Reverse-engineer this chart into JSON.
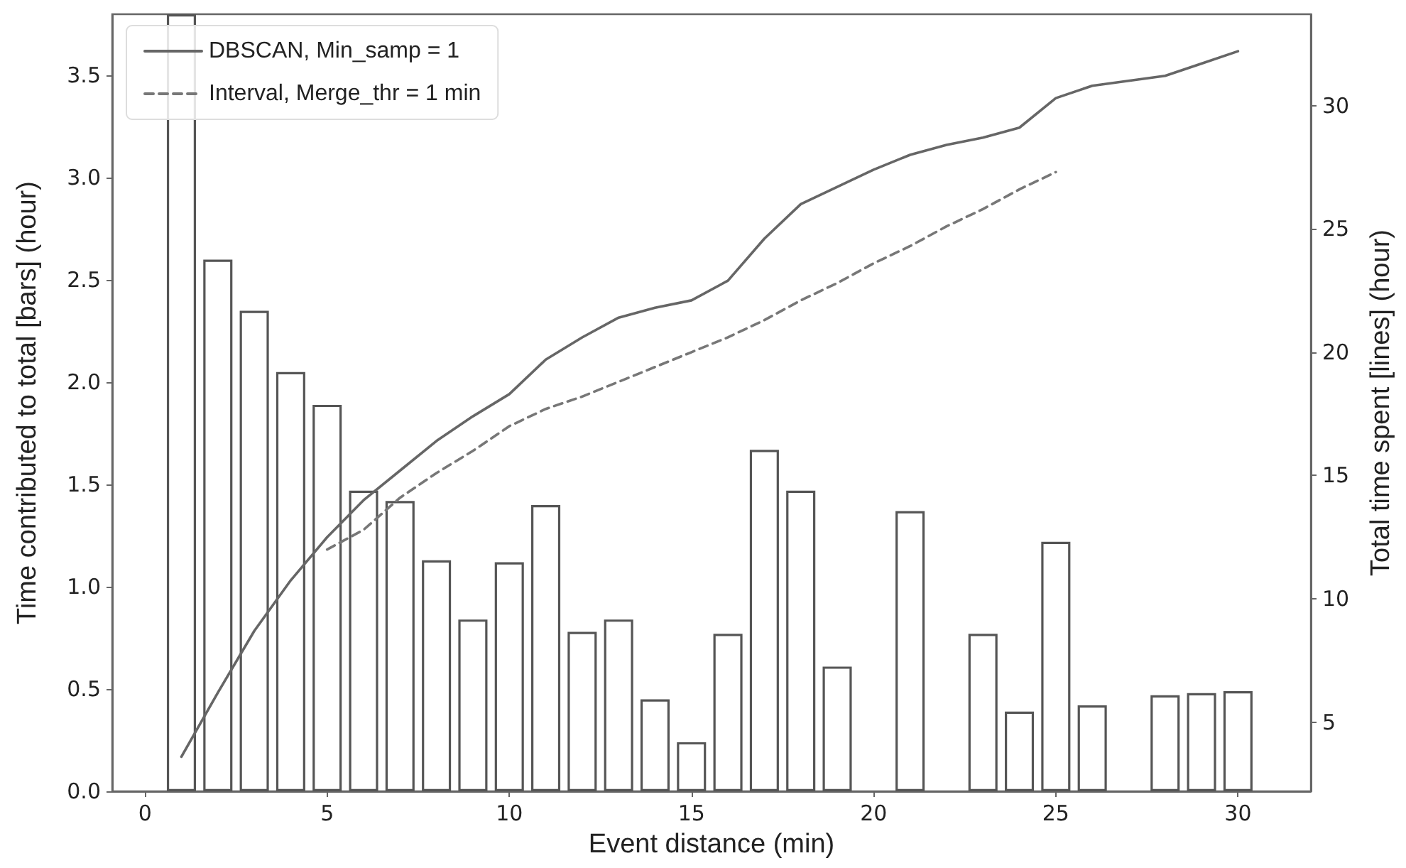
{
  "chart_data": {
    "type": "bar",
    "xlabel": "Event distance (min)",
    "ylabel": "Time contributed to total [bars] (hour)",
    "y2label": "Total time spent [lines] (hour)",
    "x": [
      1,
      2,
      3,
      4,
      5,
      6,
      7,
      8,
      9,
      10,
      11,
      12,
      13,
      14,
      15,
      16,
      17,
      18,
      19,
      20,
      21,
      22,
      23,
      24,
      25,
      26,
      27,
      28,
      29,
      30
    ],
    "xlim": [
      -0.9,
      32
    ],
    "xticks": [
      0,
      5,
      10,
      15,
      20,
      25,
      30
    ],
    "ylim": [
      0,
      3.8
    ],
    "yticks": [
      {
        "value": 0,
        "label": "0.0"
      },
      {
        "value": 0.5,
        "label": "0.5"
      },
      {
        "value": 1,
        "label": "1.0"
      },
      {
        "value": 1.5,
        "label": "1.5"
      },
      {
        "value": 2,
        "label": "2.0"
      },
      {
        "value": 2.5,
        "label": "2.5"
      },
      {
        "value": 3,
        "label": "3.0"
      },
      {
        "value": 3.5,
        "label": "3.5"
      }
    ],
    "y2lim": [
      2.2,
      33.7
    ],
    "y2ticks": [
      5,
      10,
      15,
      20,
      25,
      30
    ],
    "legend": "top left",
    "series": [
      {
        "color": "#555555",
        "values": [
          3.8,
          2.6,
          2.35,
          2.05,
          1.89,
          1.47,
          1.42,
          1.13,
          0.84,
          1.12,
          1.4,
          0.78,
          0.84,
          0.45,
          0.24,
          0.77,
          1.67,
          1.47,
          0.61,
          null,
          1.37,
          null,
          0.77,
          0.39,
          1.22,
          0.42,
          null,
          0.47,
          0.48,
          0.49
        ]
      },
      {
        "type": "line",
        "name": "DBSCAN, Min_samp = 1",
        "color": "#666666",
        "axis": "y2",
        "line_style": "solid",
        "marker": "none",
        "x": [
          1,
          2,
          3,
          4,
          5,
          6,
          7,
          8,
          9,
          10,
          11,
          12,
          13,
          14,
          15,
          16,
          17,
          18,
          19,
          20,
          21,
          22,
          23,
          24,
          25,
          26,
          27,
          28,
          29,
          30
        ],
        "values": [
          3.6,
          6.2,
          8.7,
          10.75,
          12.5,
          14.0,
          15.2,
          16.4,
          17.4,
          18.3,
          19.7,
          20.6,
          21.4,
          21.8,
          22.1,
          22.9,
          24.6,
          26.0,
          26.7,
          27.4,
          28.0,
          28.4,
          28.7,
          29.1,
          30.3,
          30.8,
          31.0,
          31.2,
          31.7,
          32.2
        ]
      },
      {
        "type": "line",
        "name": "Interval, Merge_thr = 1 min",
        "color": "#777777",
        "axis": "y2",
        "line_style": "dashed",
        "marker": "none",
        "x": [
          5,
          6,
          7,
          8,
          9,
          10,
          11,
          12,
          13,
          14,
          15,
          16,
          17,
          18,
          19,
          20,
          21,
          22,
          23,
          24,
          25
        ],
        "values": [
          12.0,
          12.8,
          14.1,
          15.1,
          16.0,
          17.0,
          17.7,
          18.2,
          18.8,
          19.4,
          20.0,
          20.6,
          21.3,
          22.1,
          22.8,
          23.6,
          24.3,
          25.1,
          25.8,
          26.6,
          27.3
        ]
      }
    ]
  }
}
